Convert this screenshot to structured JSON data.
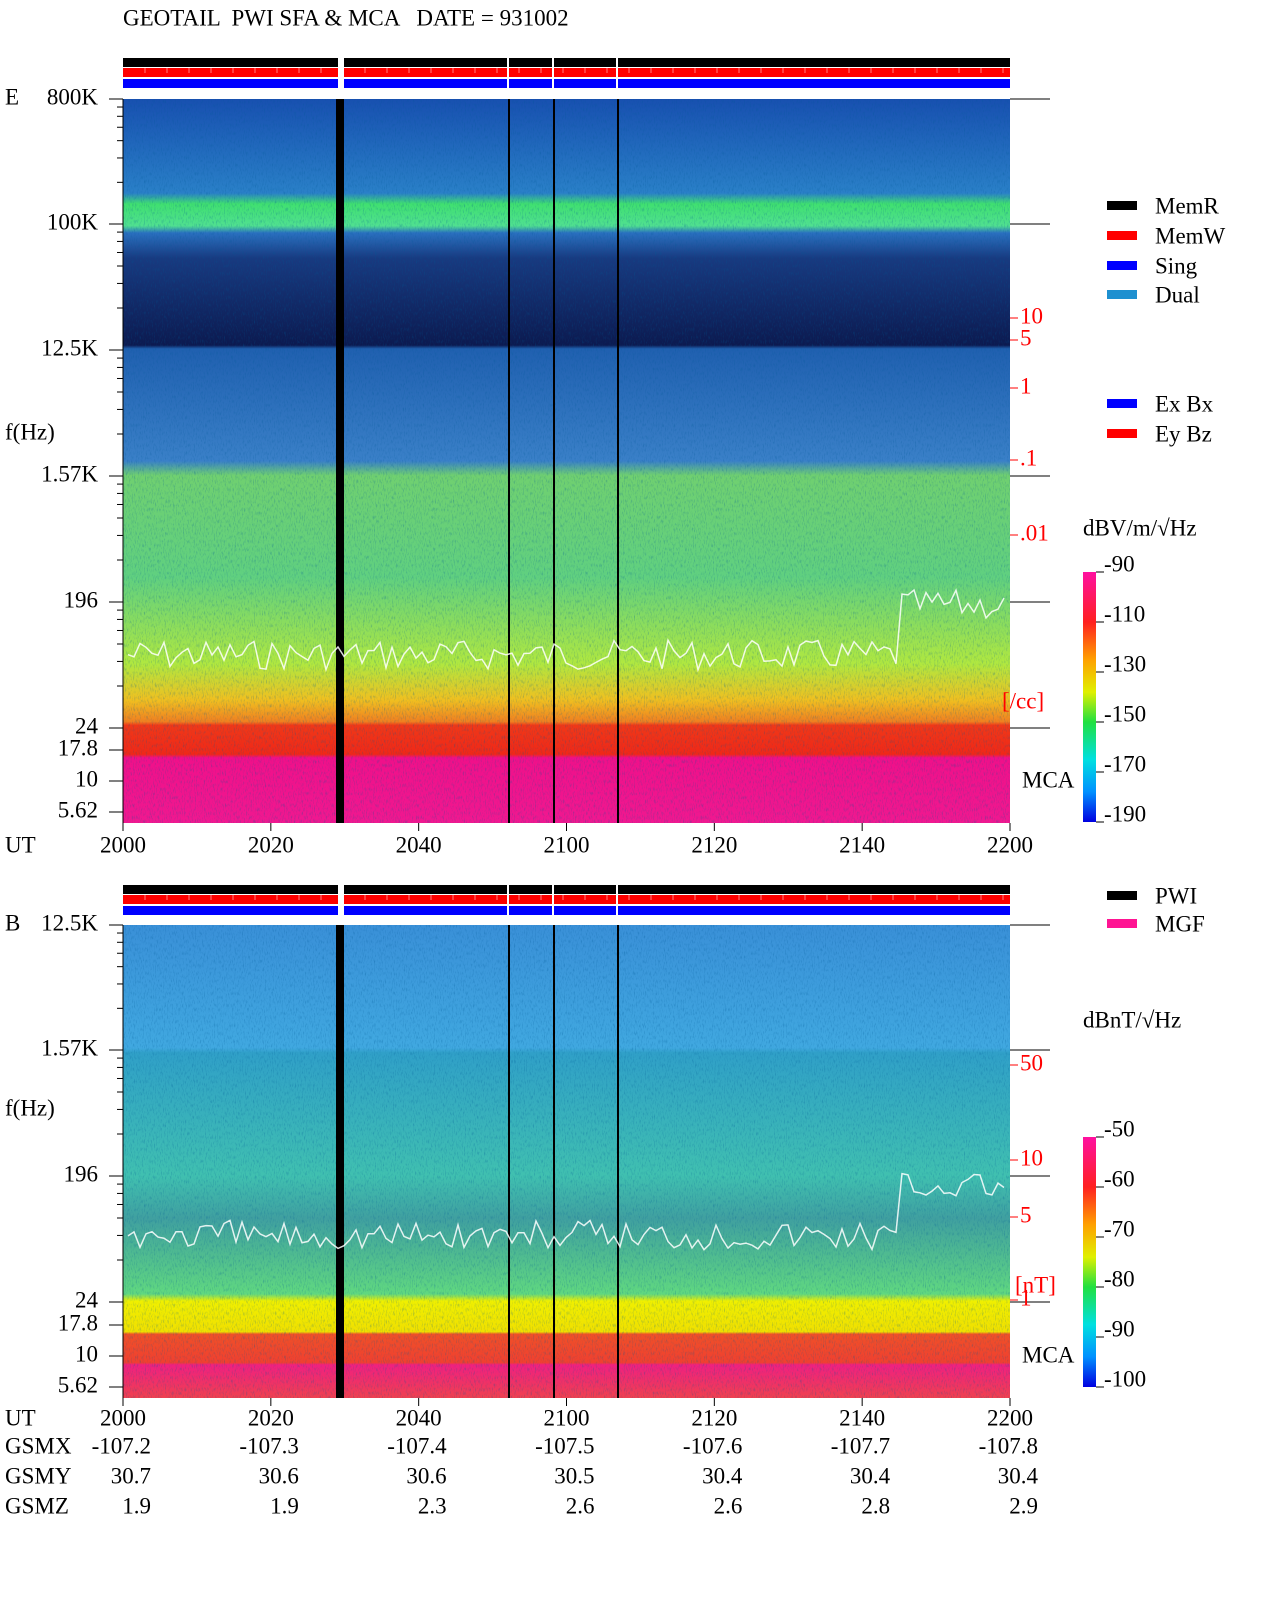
{
  "title": "GEOTAIL  PWI SFA & MCA   DATE = 931002",
  "legend_mode": [
    {
      "name": "MemR",
      "color": "#000000"
    },
    {
      "name": "MemW",
      "color": "#ff0000"
    },
    {
      "name": "Sing",
      "color": "#0000ff"
    },
    {
      "name": "Dual",
      "color": "#1e90d0"
    }
  ],
  "legend_antenna": [
    {
      "name": "Ex Bx",
      "color": "#0000ff"
    },
    {
      "name": "Ey Bz",
      "color": "#ff0000"
    }
  ],
  "legend_source": [
    {
      "name": "PWI",
      "color": "#000000"
    },
    {
      "name": "MGF",
      "color": "#ff1493"
    }
  ],
  "panels": [
    {
      "label": "E",
      "ylabel": "f(Hz)",
      "freq_ticks": [
        "800K",
        "100K",
        "12.5K",
        "1.57K",
        "196",
        "24",
        "17.8",
        "10",
        "5.62"
      ],
      "mca_label": "MCA",
      "time_label": "UT",
      "time_ticks": [
        "2000",
        "2020",
        "2040",
        "2100",
        "2120",
        "2140",
        "2200"
      ],
      "right_scale": [
        "10",
        "5",
        "1",
        ".1",
        ".01"
      ],
      "right_unit": "[/cc]",
      "colorbar": {
        "unit": "dBV/m/√Hz",
        "lim": [
          -190,
          -90
        ],
        "ticks": [
          -90,
          -110,
          -130,
          -150,
          -170,
          -190
        ]
      }
    },
    {
      "label": "B",
      "ylabel": "f(Hz)",
      "freq_ticks": [
        "12.5K",
        "1.57K",
        "196",
        "24",
        "17.8",
        "10",
        "5.62"
      ],
      "mca_label": "MCA",
      "time_label": "UT",
      "time_ticks": [
        "2000",
        "2020",
        "2040",
        "2100",
        "2120",
        "2140",
        "2200"
      ],
      "right_scale": [
        "50",
        "10",
        "5",
        "1"
      ],
      "right_unit": "[nT]",
      "colorbar": {
        "unit": "dBnT/√Hz",
        "lim": [
          -100,
          -50
        ],
        "ticks": [
          -50,
          -60,
          -70,
          -80,
          -90,
          -100
        ]
      }
    }
  ],
  "orbit": {
    "rows": [
      {
        "label": "GSMX",
        "values": [
          -107.2,
          -107.3,
          -107.4,
          -107.5,
          -107.6,
          -107.7,
          -107.8
        ]
      },
      {
        "label": "GSMY",
        "values": [
          30.7,
          30.6,
          30.6,
          30.5,
          30.4,
          30.4,
          30.4
        ]
      },
      {
        "label": "GSMZ",
        "values": [
          1.9,
          1.9,
          2.3,
          2.6,
          2.6,
          2.8,
          2.9
        ]
      }
    ]
  }
}
